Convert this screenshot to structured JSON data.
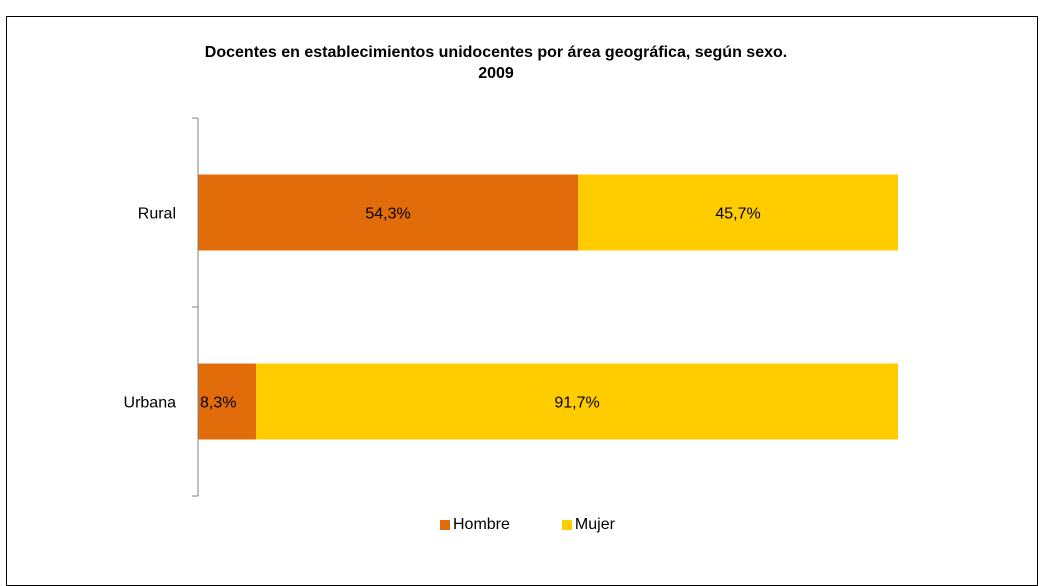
{
  "chart_data": {
    "type": "bar",
    "orientation": "horizontal",
    "stacked": true,
    "percent": true,
    "title": "Docentes en establecimientos unidocentes por área geográfica, según sexo. 2009",
    "categories": [
      "Rural",
      "Urbana"
    ],
    "series": [
      {
        "name": "Hombre",
        "values": [
          54.3,
          8.3
        ],
        "labels": [
          "54,3%",
          "8,3%"
        ],
        "color": "#E36C0A"
      },
      {
        "name": "Mujer",
        "values": [
          45.7,
          91.7
        ],
        "labels": [
          "45,7%",
          "91,7%"
        ],
        "color": "#FFCC00"
      }
    ],
    "xlim": [
      0,
      100
    ],
    "grid": false,
    "legend": "bottom"
  }
}
